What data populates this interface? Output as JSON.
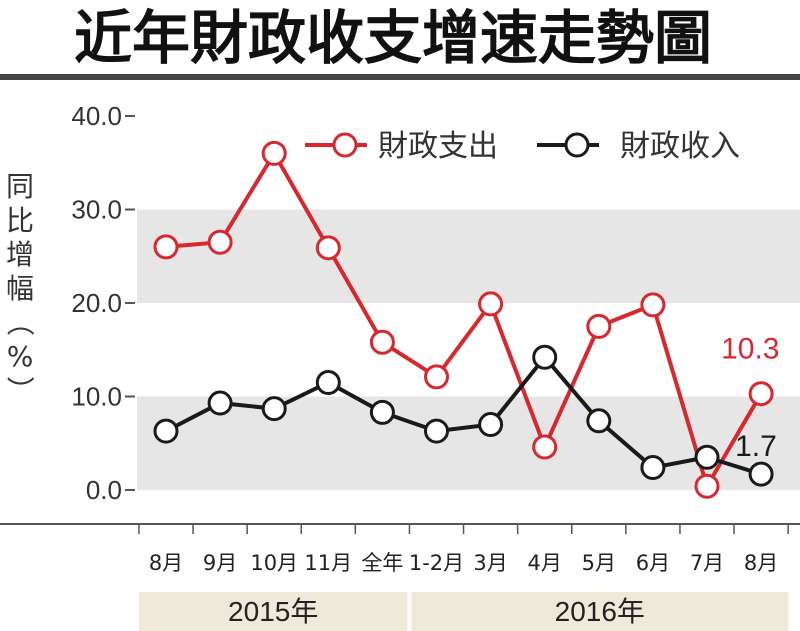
{
  "title": "近年財政收支增速走勢圖",
  "colors": {
    "expenditure": "#d7282e",
    "revenue": "#1a1a1a",
    "band": "#e6e6e6",
    "yearbar": "#efe9da"
  },
  "chart_data": {
    "type": "line",
    "title": "近年財政收支增速走勢圖",
    "ylabel": "同比增幅（%）",
    "ylim": [
      0,
      40
    ],
    "y_ticks": [
      "0.0",
      "10.0",
      "20.0",
      "30.0",
      "40.0"
    ],
    "categories": [
      "8月",
      "9月",
      "10月",
      "11月",
      "全年",
      "1-2月",
      "3月",
      "4月",
      "5月",
      "6月",
      "7月",
      "8月"
    ],
    "years": [
      {
        "label": "2015年",
        "span": [
          0,
          4
        ]
      },
      {
        "label": "2016年",
        "span": [
          5,
          11
        ]
      }
    ],
    "series": [
      {
        "name": "財政支出",
        "color": "#d7282e",
        "values": [
          26.0,
          26.5,
          36.0,
          25.9,
          15.8,
          12.1,
          19.9,
          4.6,
          17.5,
          19.8,
          0.4,
          10.3
        ]
      },
      {
        "name": "財政收入",
        "color": "#1a1a1a",
        "values": [
          6.3,
          9.3,
          8.7,
          11.5,
          8.3,
          6.3,
          7.0,
          14.2,
          7.4,
          2.4,
          3.5,
          1.7
        ]
      }
    ],
    "annotations": [
      {
        "series": 0,
        "index": 11,
        "text": "10.3"
      },
      {
        "series": 1,
        "index": 11,
        "text": "1.7"
      }
    ],
    "grid": "bands",
    "legend": "top-right"
  }
}
